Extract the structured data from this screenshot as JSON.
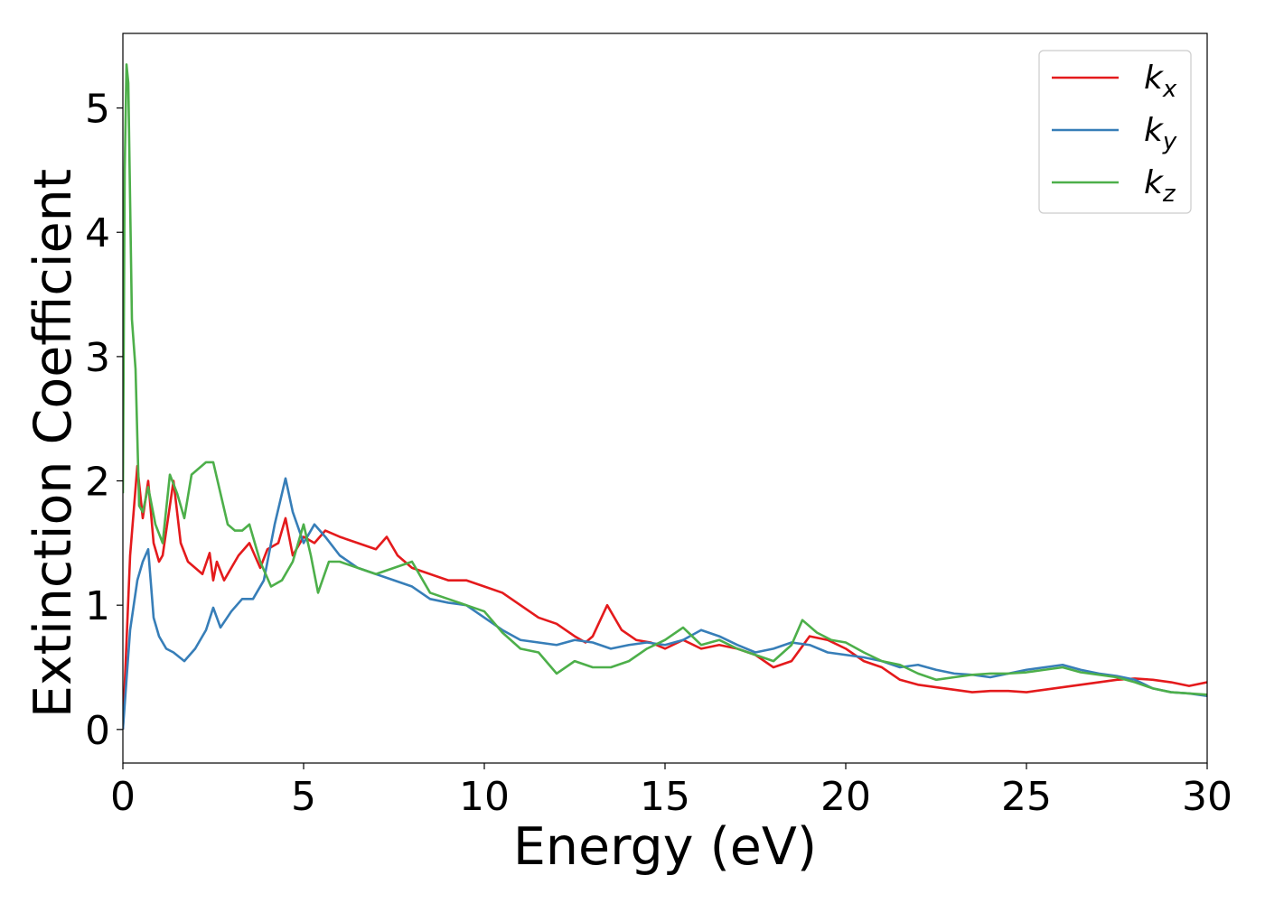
{
  "chart_data": {
    "type": "line",
    "xlabel": "Energy (eV)",
    "ylabel": "Extinction Coefficient",
    "xlim": [
      0,
      30
    ],
    "ylim": [
      -0.27,
      5.6
    ],
    "xticks": [
      0,
      5,
      10,
      15,
      20,
      25,
      30
    ],
    "yticks": [
      0,
      1,
      2,
      3,
      4,
      5
    ],
    "legend_position": "top-right",
    "grid": false,
    "series": [
      {
        "name": "k",
        "subscript": "x",
        "color": "#e41a1c",
        "x": [
          0,
          0.2,
          0.4,
          0.55,
          0.7,
          0.85,
          1.0,
          1.1,
          1.4,
          1.6,
          1.8,
          2.0,
          2.2,
          2.4,
          2.5,
          2.6,
          2.8,
          3.0,
          3.2,
          3.5,
          3.8,
          4.0,
          4.3,
          4.5,
          4.7,
          5.0,
          5.3,
          5.6,
          6.0,
          6.5,
          7.0,
          7.3,
          7.6,
          8.0,
          8.5,
          9.0,
          9.5,
          10.0,
          10.5,
          11.0,
          11.5,
          12.0,
          12.5,
          12.8,
          13.0,
          13.4,
          13.8,
          14.2,
          14.6,
          15.0,
          15.5,
          16.0,
          16.5,
          17.0,
          17.5,
          18.0,
          18.5,
          19.0,
          19.5,
          20.0,
          20.5,
          21.0,
          21.5,
          22.0,
          22.5,
          23.0,
          23.5,
          24.0,
          24.5,
          25.0,
          25.5,
          26.0,
          26.5,
          27.0,
          27.5,
          28.0,
          28.5,
          29.0,
          29.5,
          30.0
        ],
        "y": [
          0,
          1.4,
          2.12,
          1.7,
          2.0,
          1.5,
          1.35,
          1.4,
          2.0,
          1.5,
          1.35,
          1.3,
          1.25,
          1.42,
          1.2,
          1.35,
          1.2,
          1.3,
          1.4,
          1.5,
          1.3,
          1.45,
          1.5,
          1.7,
          1.4,
          1.55,
          1.5,
          1.6,
          1.55,
          1.5,
          1.45,
          1.55,
          1.4,
          1.3,
          1.25,
          1.2,
          1.2,
          1.15,
          1.1,
          1.0,
          0.9,
          0.85,
          0.75,
          0.7,
          0.75,
          1.0,
          0.8,
          0.72,
          0.7,
          0.65,
          0.72,
          0.65,
          0.68,
          0.65,
          0.6,
          0.5,
          0.55,
          0.75,
          0.72,
          0.65,
          0.55,
          0.5,
          0.4,
          0.36,
          0.34,
          0.32,
          0.3,
          0.31,
          0.31,
          0.3,
          0.32,
          0.34,
          0.36,
          0.38,
          0.4,
          0.41,
          0.4,
          0.38,
          0.35,
          0.38
        ]
      },
      {
        "name": "k",
        "subscript": "y",
        "color": "#377eb8",
        "x": [
          0,
          0.2,
          0.4,
          0.55,
          0.7,
          0.85,
          1.0,
          1.2,
          1.4,
          1.7,
          2.0,
          2.3,
          2.5,
          2.7,
          3.0,
          3.3,
          3.6,
          3.9,
          4.2,
          4.5,
          4.7,
          5.0,
          5.3,
          5.6,
          6.0,
          6.5,
          7.0,
          7.5,
          8.0,
          8.5,
          9.0,
          9.5,
          10.0,
          10.5,
          11.0,
          11.5,
          12.0,
          12.5,
          13.0,
          13.5,
          14.0,
          14.5,
          15.0,
          15.5,
          16.0,
          16.5,
          17.0,
          17.5,
          18.0,
          18.5,
          19.0,
          19.5,
          20.0,
          20.5,
          21.0,
          21.5,
          22.0,
          22.5,
          23.0,
          23.5,
          24.0,
          24.5,
          25.0,
          25.5,
          26.0,
          26.5,
          27.0,
          27.5,
          28.0,
          28.5,
          29.0,
          29.5,
          30.0
        ],
        "y": [
          0,
          0.8,
          1.2,
          1.35,
          1.45,
          0.9,
          0.75,
          0.65,
          0.62,
          0.55,
          0.65,
          0.8,
          0.98,
          0.82,
          0.95,
          1.05,
          1.05,
          1.2,
          1.65,
          2.02,
          1.75,
          1.5,
          1.65,
          1.55,
          1.4,
          1.3,
          1.25,
          1.2,
          1.15,
          1.05,
          1.02,
          1.0,
          0.9,
          0.8,
          0.72,
          0.7,
          0.68,
          0.72,
          0.7,
          0.65,
          0.68,
          0.7,
          0.68,
          0.72,
          0.8,
          0.75,
          0.68,
          0.62,
          0.65,
          0.7,
          0.68,
          0.62,
          0.6,
          0.58,
          0.55,
          0.5,
          0.52,
          0.48,
          0.45,
          0.44,
          0.42,
          0.45,
          0.48,
          0.5,
          0.52,
          0.48,
          0.45,
          0.43,
          0.4,
          0.33,
          0.3,
          0.29,
          0.27
        ]
      },
      {
        "name": "k",
        "subscript": "z",
        "color": "#4daf4a",
        "x": [
          0,
          0.05,
          0.1,
          0.15,
          0.25,
          0.35,
          0.45,
          0.55,
          0.7,
          0.9,
          1.1,
          1.3,
          1.5,
          1.7,
          1.9,
          2.1,
          2.3,
          2.5,
          2.7,
          2.9,
          3.1,
          3.3,
          3.5,
          3.8,
          4.1,
          4.4,
          4.7,
          5.0,
          5.2,
          5.4,
          5.7,
          6.0,
          6.5,
          7.0,
          7.5,
          8.0,
          8.5,
          9.0,
          9.5,
          10.0,
          10.5,
          11.0,
          11.5,
          12.0,
          12.5,
          13.0,
          13.5,
          14.0,
          14.5,
          15.0,
          15.5,
          16.0,
          16.5,
          17.0,
          17.5,
          18.0,
          18.5,
          18.8,
          19.2,
          19.6,
          20.0,
          20.5,
          21.0,
          21.5,
          22.0,
          22.5,
          23.0,
          23.5,
          24.0,
          24.5,
          25.0,
          25.5,
          26.0,
          26.5,
          27.0,
          27.5,
          28.0,
          28.5,
          29.0,
          29.5,
          30.0
        ],
        "y": [
          1.9,
          4.5,
          5.35,
          5.2,
          3.3,
          2.9,
          1.8,
          1.75,
          1.95,
          1.65,
          1.5,
          2.05,
          1.9,
          1.7,
          2.05,
          2.1,
          2.15,
          2.15,
          1.9,
          1.65,
          1.6,
          1.6,
          1.65,
          1.35,
          1.15,
          1.2,
          1.35,
          1.65,
          1.4,
          1.1,
          1.35,
          1.35,
          1.3,
          1.25,
          1.3,
          1.35,
          1.1,
          1.05,
          1.0,
          0.95,
          0.78,
          0.65,
          0.62,
          0.45,
          0.55,
          0.5,
          0.5,
          0.55,
          0.65,
          0.72,
          0.82,
          0.68,
          0.72,
          0.65,
          0.6,
          0.55,
          0.68,
          0.88,
          0.78,
          0.72,
          0.7,
          0.62,
          0.55,
          0.52,
          0.45,
          0.4,
          0.42,
          0.44,
          0.45,
          0.45,
          0.46,
          0.48,
          0.5,
          0.46,
          0.44,
          0.42,
          0.38,
          0.33,
          0.3,
          0.29,
          0.28
        ]
      }
    ]
  }
}
